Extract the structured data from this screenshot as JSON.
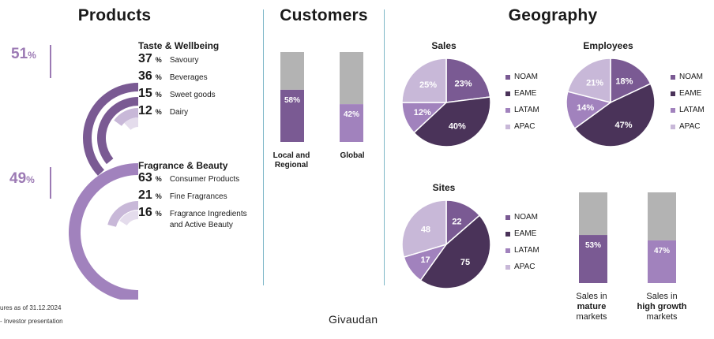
{
  "headers": {
    "products": "Products",
    "customers": "Customers",
    "geography": "Geography"
  },
  "colors": {
    "dark": "#4a3359",
    "mid": "#7a5a93",
    "light": "#a182bd",
    "pale": "#c8b8d8",
    "gray": "#b3b3b3",
    "divider": "#7fb8c8"
  },
  "products": {
    "taste": {
      "share": "51",
      "title": "Taste & Wellbeing",
      "items": [
        {
          "value": "37",
          "label": "Savoury"
        },
        {
          "value": "36",
          "label": "Beverages"
        },
        {
          "value": "15",
          "label": "Sweet goods"
        },
        {
          "value": "12",
          "label": "Dairy"
        }
      ]
    },
    "fragrance": {
      "share": "49",
      "title": "Fragrance & Beauty",
      "items": [
        {
          "value": "63",
          "label": "Consumer Products"
        },
        {
          "value": "21",
          "label": "Fine Fragrances"
        },
        {
          "value": "16",
          "label": "Fragrance Ingredients and Active Beauty"
        }
      ]
    },
    "pct_symbol": "%"
  },
  "chart_data": [
    {
      "type": "bar",
      "id": "customers",
      "categories": [
        "Local and Regional",
        "Global"
      ],
      "series": [],
      "values": [
        58,
        42
      ],
      "value_labels": [
        "58%",
        "42%"
      ],
      "ylim": [
        0,
        100
      ]
    },
    {
      "type": "pie",
      "id": "sales",
      "title": "Sales",
      "labels": [
        "NOAM",
        "EAME",
        "LATAM",
        "APAC"
      ],
      "values": [
        23,
        40,
        12,
        25
      ],
      "value_labels": [
        "23%",
        "40%",
        "12%",
        "25%"
      ]
    },
    {
      "type": "pie",
      "id": "employees",
      "title": "Employees",
      "labels": [
        "NOAM",
        "EAME",
        "LATAM",
        "APAC"
      ],
      "values": [
        18,
        47,
        14,
        21
      ],
      "value_labels": [
        "18%",
        "47%",
        "14%",
        "21%"
      ]
    },
    {
      "type": "pie",
      "id": "sites",
      "title": "Sites",
      "labels": [
        "NOAM",
        "EAME",
        "LATAM",
        "APAC"
      ],
      "values": [
        22,
        75,
        17,
        48
      ],
      "value_labels": [
        "22",
        "75",
        "17",
        "48"
      ]
    },
    {
      "type": "bar",
      "id": "markets",
      "categories": [
        "Sales in mature markets",
        "Sales in high growth markets"
      ],
      "values": [
        53,
        47
      ],
      "value_labels": [
        "53%",
        "47%"
      ],
      "ylim": [
        0,
        100
      ]
    }
  ],
  "legend_labels": [
    "NOAM",
    "EAME",
    "LATAM",
    "APAC"
  ],
  "customers_labels": {
    "local_line1": "Local and",
    "local_line2": "Regional",
    "global": "Global"
  },
  "markets_labels": {
    "mature_line1": "Sales in",
    "mature_line2": "mature",
    "mature_line3": "markets",
    "growth_line1": "Sales in",
    "growth_line2": "high growth",
    "growth_line3": "markets"
  },
  "footer": {
    "note1": "ures as of 31.12.2024",
    "note2": "- Investor presentation",
    "brand": "Givaudan"
  }
}
